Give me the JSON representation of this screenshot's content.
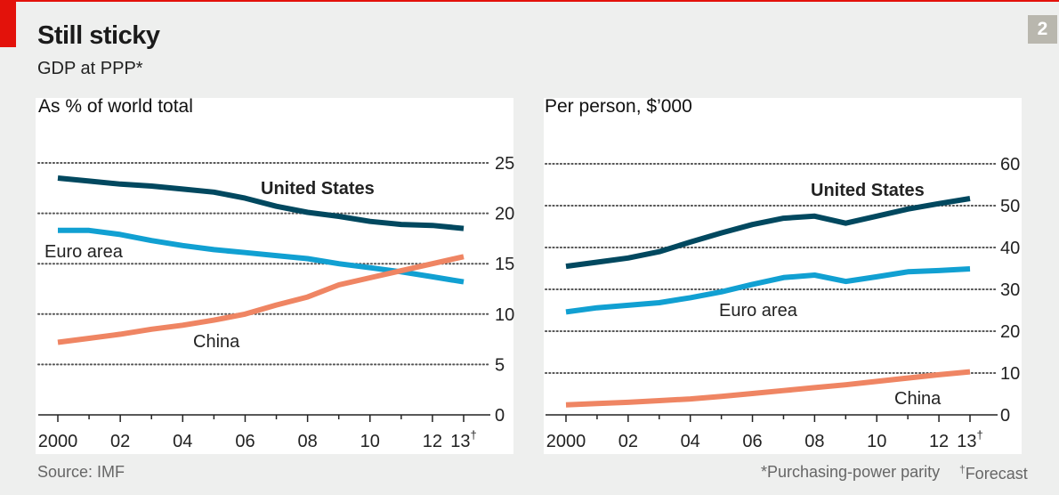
{
  "header": {
    "title": "Still sticky",
    "subtitle": "GDP at PPP*",
    "badge": "2"
  },
  "footer": {
    "source": "Source: IMF",
    "footnote_ppp": "*Purchasing-power parity",
    "footnote_forecast_mark": "†",
    "footnote_forecast": "Forecast"
  },
  "colors": {
    "united_states": "#01485f",
    "euro_area": "#11a0d2",
    "china": "#ef8563",
    "accent_red": "#e3120b",
    "badge": "#b9b7ae"
  },
  "chart_data": [
    {
      "type": "line",
      "title": "As % of world total",
      "xlabel": "",
      "ylabel": "",
      "x": [
        2000,
        2001,
        2002,
        2003,
        2004,
        2005,
        2006,
        2007,
        2008,
        2009,
        2010,
        2011,
        2012,
        2013
      ],
      "xlim": [
        2000,
        2013
      ],
      "ylim": [
        0,
        25
      ],
      "yticks": [
        0,
        5,
        10,
        15,
        20,
        25
      ],
      "xtick_labels": [
        "2000",
        "",
        "02",
        "",
        "04",
        "",
        "06",
        "",
        "08",
        "",
        "10",
        "",
        "12",
        "13†"
      ],
      "grid": true,
      "y_axis_side": "right",
      "series": [
        {
          "name": "United States",
          "label_bold": true,
          "color_key": "united_states",
          "values": [
            23.5,
            23.2,
            22.9,
            22.7,
            22.4,
            22.1,
            21.5,
            20.7,
            20.1,
            19.7,
            19.2,
            18.9,
            18.8,
            18.5
          ]
        },
        {
          "name": "Euro area",
          "label_bold": false,
          "color_key": "euro_area",
          "values": [
            18.3,
            18.3,
            17.9,
            17.3,
            16.8,
            16.4,
            16.1,
            15.8,
            15.5,
            15.0,
            14.6,
            14.2,
            13.7,
            13.2
          ]
        },
        {
          "name": "China",
          "label_bold": false,
          "color_key": "china",
          "values": [
            7.2,
            7.6,
            8.0,
            8.5,
            8.9,
            9.4,
            10.0,
            10.9,
            11.7,
            12.9,
            13.6,
            14.3,
            15.0,
            15.7
          ]
        }
      ],
      "annotations": [
        {
          "text": "United States",
          "series": "United States",
          "near_x": 2009,
          "near_y": 22.5
        },
        {
          "text": "Euro area",
          "series": "Euro area",
          "near_x": 2000.5,
          "near_y": 16.1
        },
        {
          "text": "China",
          "series": "China",
          "near_x": 2005.2,
          "near_y": 7.0
        }
      ]
    },
    {
      "type": "line",
      "title": "Per person, $’000",
      "xlabel": "",
      "ylabel": "",
      "x": [
        2000,
        2001,
        2002,
        2003,
        2004,
        2005,
        2006,
        2007,
        2008,
        2009,
        2010,
        2011,
        2012,
        2013
      ],
      "xlim": [
        2000,
        2013
      ],
      "ylim": [
        0,
        60
      ],
      "yticks": [
        0,
        10,
        20,
        30,
        40,
        50,
        60
      ],
      "xtick_labels": [
        "2000",
        "",
        "02",
        "",
        "04",
        "",
        "06",
        "",
        "08",
        "",
        "10",
        "",
        "12",
        "13†"
      ],
      "grid": true,
      "y_axis_side": "right",
      "series": [
        {
          "name": "United States",
          "label_bold": true,
          "color_key": "united_states",
          "values": [
            35.5,
            36.5,
            37.5,
            39.0,
            41.3,
            43.5,
            45.5,
            47.0,
            47.5,
            45.8,
            47.5,
            49.2,
            50.5,
            51.7
          ]
        },
        {
          "name": "Euro area",
          "label_bold": false,
          "color_key": "euro_area",
          "values": [
            24.6,
            25.6,
            26.2,
            26.8,
            28.0,
            29.4,
            31.2,
            32.8,
            33.4,
            31.9,
            33.0,
            34.2,
            34.5,
            34.9
          ]
        },
        {
          "name": "China",
          "label_bold": false,
          "color_key": "china",
          "values": [
            2.4,
            2.7,
            3.0,
            3.4,
            3.8,
            4.4,
            5.1,
            5.8,
            6.5,
            7.2,
            8.0,
            8.8,
            9.6,
            10.3
          ]
        }
      ],
      "annotations": [
        {
          "text": "United States",
          "series": "United States",
          "near_x": 2008.5,
          "near_y": 53.5
        },
        {
          "text": "Euro area",
          "series": "Euro area",
          "near_x": 2005,
          "near_y": 24.5
        },
        {
          "text": "China",
          "series": "China",
          "near_x": 2011,
          "near_y": 4.0
        }
      ]
    }
  ]
}
